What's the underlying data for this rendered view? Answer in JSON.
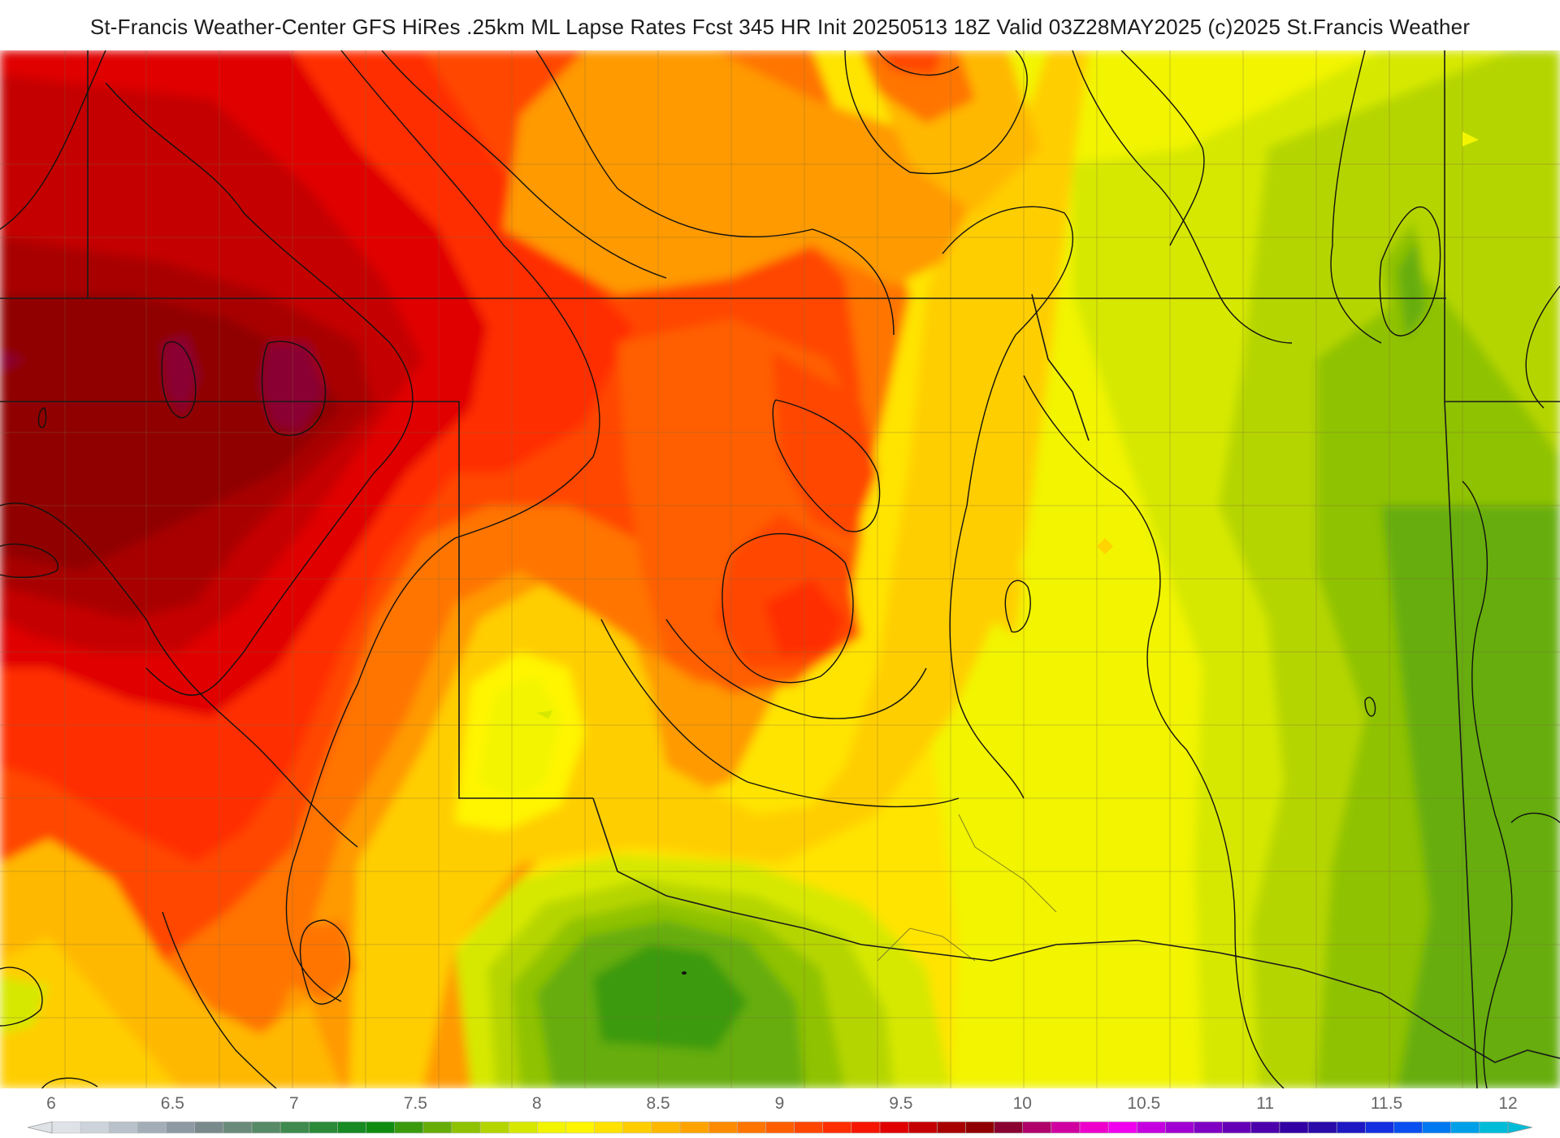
{
  "header": {
    "title": "St-Francis Weather-Center GFS HiRes .25km ML Lapse Rates  Fcst 345 HR Init 20250513 18Z  Valid 03Z28MAY2025    (c)2025 St.Francis Weather"
  },
  "map": {
    "product": "ML Lapse Rates",
    "shading": "filled contours",
    "contour_lines": "black",
    "boundaries": [
      "state lines",
      "county lines"
    ]
  },
  "colorbar": {
    "min": 6,
    "max": 12,
    "tick_labels": [
      "6",
      "6.5",
      "7",
      "7.5",
      "8",
      "8.5",
      "9",
      "9.5",
      "10",
      "10.5",
      "11",
      "11.5",
      "12"
    ],
    "colors": [
      "#dfe3e8",
      "#cdd3da",
      "#b9c1ca",
      "#a3adb7",
      "#8d99a3",
      "#7a8a8c",
      "#6a8a7a",
      "#578a66",
      "#3f8a4e",
      "#2a8a3a",
      "#178a23",
      "#0f8c10",
      "#3a9a0e",
      "#66ad08",
      "#8fc200",
      "#b5d500",
      "#d6e800",
      "#f2f400",
      "#fff500",
      "#ffe200",
      "#ffce00",
      "#ffb800",
      "#ffa300",
      "#ff8c00",
      "#ff7500",
      "#ff5e00",
      "#ff4600",
      "#ff2e00",
      "#f51500",
      "#e00000",
      "#c40000",
      "#a80000",
      "#900000",
      "#8a0030",
      "#b0006a",
      "#d000a0",
      "#ee00cc",
      "#f000ee",
      "#c400e0",
      "#a000d2",
      "#8000c4",
      "#6600b8",
      "#4c00ac",
      "#3300a4",
      "#2a0aa8",
      "#1e18c4",
      "#1430e0",
      "#0a50f0",
      "#0078f0",
      "#00a0e8",
      "#00bcd8"
    ]
  },
  "legend_icons": {
    "left": "triangle-left-icon",
    "right": "triangle-right-icon"
  }
}
